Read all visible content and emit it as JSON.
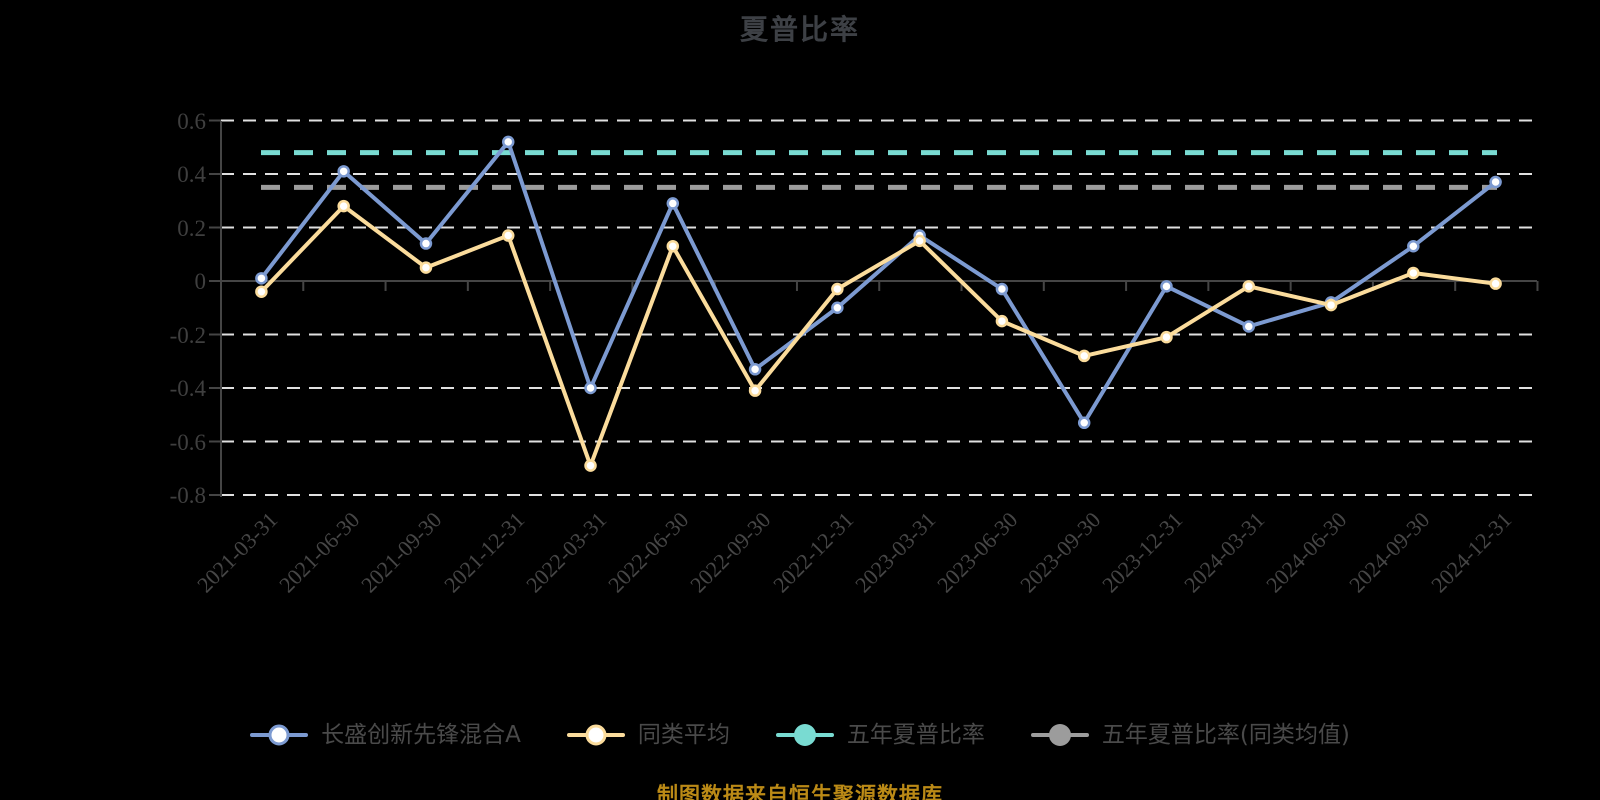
{
  "title": "夏普比率",
  "source_note": "制图数据来自恒生聚源数据库",
  "colors": {
    "background": "#000000",
    "title_text": "#3d4045",
    "axis_line": "#454545",
    "grid_line": "#e0e0e0",
    "y_label_text": "#3f3f3f",
    "x_label_text": "#464646",
    "legend_text": "#4a4a4a",
    "source_text": "#bb8a16",
    "marker_fill": "#ffffff",
    "fund_line": "#7c9ad1",
    "peer_line": "#fbdc9c",
    "five_year_line": "#79dbd2",
    "five_year_peer_line": "#9c9c9c"
  },
  "chart_data": {
    "type": "line",
    "title": "夏普比率",
    "xlabel": "",
    "ylabel": "",
    "grid": true,
    "legend_position": "bottom",
    "ylim": [
      -0.8,
      0.6
    ],
    "yticks": [
      0.6,
      0.4,
      0.2,
      0,
      -0.2,
      -0.4,
      -0.6,
      -0.8
    ],
    "categories": [
      "2021-03-31",
      "2021-06-30",
      "2021-09-30",
      "2021-12-31",
      "2022-03-31",
      "2022-06-30",
      "2022-09-30",
      "2022-12-31",
      "2023-03-31",
      "2023-06-30",
      "2023-09-30",
      "2023-12-31",
      "2024-03-31",
      "2024-06-30",
      "2024-09-30",
      "2024-12-31"
    ],
    "series": [
      {
        "name": "长盛创新先锋混合A",
        "type": "line",
        "marker": "hollow",
        "color": "#7c9ad1",
        "values": [
          0.01,
          0.41,
          0.14,
          0.52,
          -0.4,
          0.29,
          -0.33,
          -0.1,
          0.17,
          -0.03,
          -0.53,
          -0.02,
          -0.17,
          -0.08,
          0.13,
          0.37
        ]
      },
      {
        "name": "同类平均",
        "type": "line",
        "marker": "hollow",
        "color": "#fbdc9c",
        "values": [
          -0.04,
          0.28,
          0.05,
          0.17,
          -0.69,
          0.13,
          -0.41,
          -0.03,
          0.15,
          -0.15,
          -0.28,
          -0.21,
          -0.02,
          -0.09,
          0.03,
          -0.01
        ]
      },
      {
        "name": "五年夏普比率",
        "type": "hline",
        "marker": "filled",
        "color": "#79dbd2",
        "value": 0.48
      },
      {
        "name": "五年夏普比率(同类均值)",
        "type": "hline",
        "marker": "filled",
        "color": "#9c9c9c",
        "value": 0.35
      }
    ]
  }
}
